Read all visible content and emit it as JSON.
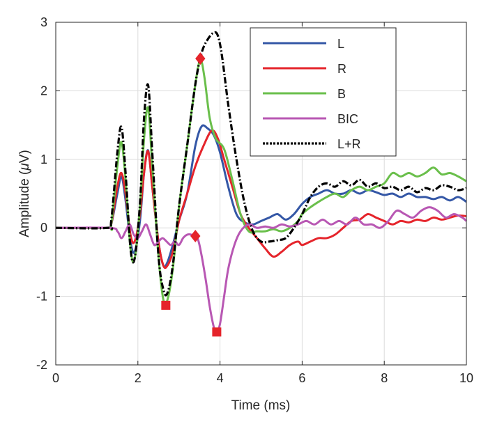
{
  "chart_data": {
    "type": "line",
    "title": "",
    "xlabel": "Time (ms)",
    "ylabel_prefix": "Amplitude (",
    "ylabel_mu": "μ",
    "ylabel_suffix": "V)",
    "xlim": [
      0,
      10
    ],
    "ylim": [
      -2,
      3
    ],
    "xticks": [
      0,
      2,
      4,
      6,
      8,
      10
    ],
    "yticks": [
      -2,
      -1,
      0,
      1,
      2,
      3
    ],
    "xtick_labels": [
      "0",
      "2",
      "4",
      "6",
      "8",
      "10"
    ],
    "ytick_labels": [
      "-2",
      "-1",
      "0",
      "1",
      "2",
      "3"
    ],
    "grid": true,
    "legend_position": "top-right",
    "series": [
      {
        "name": "L",
        "color": "#3457a6",
        "dash": "solid",
        "points": [
          [
            0,
            0
          ],
          [
            1.25,
            0
          ],
          [
            1.35,
            0.05
          ],
          [
            1.5,
            0.5
          ],
          [
            1.6,
            0.75
          ],
          [
            1.7,
            0.4
          ],
          [
            1.82,
            -0.2
          ],
          [
            1.92,
            -0.35
          ],
          [
            2.05,
            0.1
          ],
          [
            2.15,
            0.8
          ],
          [
            2.25,
            1.13
          ],
          [
            2.35,
            0.6
          ],
          [
            2.5,
            -0.2
          ],
          [
            2.62,
            -0.55
          ],
          [
            2.72,
            -0.5
          ],
          [
            2.85,
            -0.25
          ],
          [
            3.0,
            0.1
          ],
          [
            3.2,
            0.5
          ],
          [
            3.4,
            1.2
          ],
          [
            3.55,
            1.48
          ],
          [
            3.7,
            1.45
          ],
          [
            3.85,
            1.35
          ],
          [
            4.0,
            1.1
          ],
          [
            4.2,
            0.6
          ],
          [
            4.4,
            0.2
          ],
          [
            4.6,
            0.08
          ],
          [
            4.8,
            0.05
          ],
          [
            5.0,
            0.1
          ],
          [
            5.2,
            0.15
          ],
          [
            5.4,
            0.2
          ],
          [
            5.6,
            0.12
          ],
          [
            5.8,
            0.2
          ],
          [
            6.0,
            0.35
          ],
          [
            6.2,
            0.45
          ],
          [
            6.4,
            0.5
          ],
          [
            6.6,
            0.55
          ],
          [
            6.8,
            0.5
          ],
          [
            7.0,
            0.5
          ],
          [
            7.2,
            0.55
          ],
          [
            7.4,
            0.5
          ],
          [
            7.6,
            0.55
          ],
          [
            7.8,
            0.52
          ],
          [
            8.0,
            0.48
          ],
          [
            8.2,
            0.5
          ],
          [
            8.4,
            0.45
          ],
          [
            8.6,
            0.5
          ],
          [
            8.8,
            0.45
          ],
          [
            9.0,
            0.45
          ],
          [
            9.2,
            0.42
          ],
          [
            9.4,
            0.45
          ],
          [
            9.6,
            0.4
          ],
          [
            9.8,
            0.45
          ],
          [
            10.0,
            0.38
          ]
        ]
      },
      {
        "name": "R",
        "color": "#e5242b",
        "dash": "solid",
        "points": [
          [
            0,
            0
          ],
          [
            1.25,
            0
          ],
          [
            1.35,
            0.05
          ],
          [
            1.5,
            0.6
          ],
          [
            1.6,
            0.8
          ],
          [
            1.7,
            0.5
          ],
          [
            1.82,
            -0.1
          ],
          [
            1.92,
            -0.2
          ],
          [
            2.05,
            0.2
          ],
          [
            2.15,
            0.8
          ],
          [
            2.25,
            1.12
          ],
          [
            2.35,
            0.6
          ],
          [
            2.5,
            -0.2
          ],
          [
            2.62,
            -0.55
          ],
          [
            2.72,
            -0.55
          ],
          [
            2.85,
            -0.35
          ],
          [
            3.0,
            0.1
          ],
          [
            3.2,
            0.5
          ],
          [
            3.4,
            0.9
          ],
          [
            3.6,
            1.2
          ],
          [
            3.8,
            1.42
          ],
          [
            3.95,
            1.3
          ],
          [
            4.1,
            1.0
          ],
          [
            4.3,
            0.6
          ],
          [
            4.5,
            0.2
          ],
          [
            4.7,
            0.0
          ],
          [
            4.9,
            -0.15
          ],
          [
            5.1,
            -0.3
          ],
          [
            5.3,
            -0.42
          ],
          [
            5.5,
            -0.35
          ],
          [
            5.7,
            -0.25
          ],
          [
            5.9,
            -0.2
          ],
          [
            6.0,
            -0.25
          ],
          [
            6.2,
            -0.2
          ],
          [
            6.4,
            -0.15
          ],
          [
            6.6,
            -0.15
          ],
          [
            6.8,
            -0.1
          ],
          [
            7.0,
            0.0
          ],
          [
            7.2,
            0.1
          ],
          [
            7.4,
            0.12
          ],
          [
            7.6,
            0.2
          ],
          [
            7.8,
            0.15
          ],
          [
            8.0,
            0.1
          ],
          [
            8.2,
            0.05
          ],
          [
            8.4,
            0.1
          ],
          [
            8.6,
            0.08
          ],
          [
            8.8,
            0.12
          ],
          [
            9.0,
            0.1
          ],
          [
            9.2,
            0.15
          ],
          [
            9.4,
            0.12
          ],
          [
            9.6,
            0.15
          ],
          [
            9.8,
            0.18
          ],
          [
            10.0,
            0.17
          ]
        ]
      },
      {
        "name": "B",
        "color": "#6abf4b",
        "dash": "solid",
        "points": [
          [
            0,
            0
          ],
          [
            1.25,
            0
          ],
          [
            1.35,
            0.05
          ],
          [
            1.5,
            0.9
          ],
          [
            1.6,
            1.25
          ],
          [
            1.7,
            0.7
          ],
          [
            1.82,
            -0.3
          ],
          [
            1.92,
            -0.45
          ],
          [
            2.05,
            0.3
          ],
          [
            2.15,
            1.3
          ],
          [
            2.25,
            1.75
          ],
          [
            2.35,
            0.9
          ],
          [
            2.5,
            -0.4
          ],
          [
            2.62,
            -1.05
          ],
          [
            2.72,
            -1.05
          ],
          [
            2.85,
            -0.6
          ],
          [
            3.0,
            0.3
          ],
          [
            3.2,
            1.2
          ],
          [
            3.4,
            2.1
          ],
          [
            3.52,
            2.45
          ],
          [
            3.62,
            2.2
          ],
          [
            3.75,
            1.6
          ],
          [
            3.9,
            1.3
          ],
          [
            4.1,
            1.15
          ],
          [
            4.3,
            0.7
          ],
          [
            4.5,
            0.2
          ],
          [
            4.7,
            -0.05
          ],
          [
            4.9,
            -0.05
          ],
          [
            5.1,
            -0.05
          ],
          [
            5.3,
            -0.02
          ],
          [
            5.5,
            -0.05
          ],
          [
            5.7,
            0.0
          ],
          [
            5.9,
            0.1
          ],
          [
            6.0,
            0.2
          ],
          [
            6.2,
            0.3
          ],
          [
            6.4,
            0.38
          ],
          [
            6.6,
            0.45
          ],
          [
            6.8,
            0.5
          ],
          [
            7.0,
            0.45
          ],
          [
            7.2,
            0.55
          ],
          [
            7.4,
            0.6
          ],
          [
            7.6,
            0.55
          ],
          [
            7.8,
            0.6
          ],
          [
            8.0,
            0.65
          ],
          [
            8.2,
            0.8
          ],
          [
            8.4,
            0.75
          ],
          [
            8.6,
            0.8
          ],
          [
            8.8,
            0.75
          ],
          [
            9.0,
            0.8
          ],
          [
            9.2,
            0.88
          ],
          [
            9.4,
            0.78
          ],
          [
            9.6,
            0.8
          ],
          [
            9.8,
            0.75
          ],
          [
            10.0,
            0.68
          ]
        ]
      },
      {
        "name": "BIC",
        "color": "#b857b3",
        "dash": "solid",
        "points": [
          [
            0,
            0
          ],
          [
            1.3,
            0
          ],
          [
            1.5,
            -0.05
          ],
          [
            1.6,
            -0.15
          ],
          [
            1.7,
            -0.05
          ],
          [
            1.8,
            0.05
          ],
          [
            1.9,
            -0.1
          ],
          [
            2.0,
            -0.15
          ],
          [
            2.1,
            -0.05
          ],
          [
            2.2,
            0.05
          ],
          [
            2.3,
            -0.1
          ],
          [
            2.4,
            -0.25
          ],
          [
            2.5,
            -0.2
          ],
          [
            2.6,
            -0.15
          ],
          [
            2.7,
            -0.2
          ],
          [
            2.8,
            -0.25
          ],
          [
            2.9,
            -0.2
          ],
          [
            3.0,
            -0.25
          ],
          [
            3.1,
            -0.15
          ],
          [
            3.2,
            -0.1
          ],
          [
            3.3,
            -0.1
          ],
          [
            3.45,
            -0.15
          ],
          [
            3.55,
            -0.4
          ],
          [
            3.65,
            -0.75
          ],
          [
            3.75,
            -1.15
          ],
          [
            3.85,
            -1.45
          ],
          [
            3.92,
            -1.52
          ],
          [
            4.0,
            -1.4
          ],
          [
            4.1,
            -1.0
          ],
          [
            4.2,
            -0.6
          ],
          [
            4.35,
            -0.25
          ],
          [
            4.5,
            -0.05
          ],
          [
            4.7,
            0.05
          ],
          [
            4.9,
            0.0
          ],
          [
            5.1,
            0.02
          ],
          [
            5.3,
            0.0
          ],
          [
            5.5,
            0.05
          ],
          [
            5.7,
            0.02
          ],
          [
            5.9,
            0.05
          ],
          [
            6.1,
            0.1
          ],
          [
            6.3,
            0.05
          ],
          [
            6.5,
            0.12
          ],
          [
            6.7,
            0.05
          ],
          [
            6.9,
            0.1
          ],
          [
            7.1,
            0.05
          ],
          [
            7.3,
            0.15
          ],
          [
            7.5,
            0.05
          ],
          [
            7.7,
            0.05
          ],
          [
            7.9,
            0.0
          ],
          [
            8.1,
            0.1
          ],
          [
            8.3,
            0.25
          ],
          [
            8.5,
            0.2
          ],
          [
            8.7,
            0.15
          ],
          [
            8.9,
            0.25
          ],
          [
            9.1,
            0.3
          ],
          [
            9.3,
            0.25
          ],
          [
            9.5,
            0.15
          ],
          [
            9.7,
            0.2
          ],
          [
            9.9,
            0.15
          ],
          [
            10.0,
            0.1
          ]
        ]
      },
      {
        "name": "L+R",
        "color": "#000000",
        "dash": "dashdot",
        "points": [
          [
            0,
            0
          ],
          [
            1.25,
            0
          ],
          [
            1.35,
            0.1
          ],
          [
            1.5,
            1.1
          ],
          [
            1.6,
            1.47
          ],
          [
            1.7,
            0.8
          ],
          [
            1.82,
            -0.3
          ],
          [
            1.92,
            -0.45
          ],
          [
            2.05,
            0.35
          ],
          [
            2.15,
            1.6
          ],
          [
            2.25,
            2.08
          ],
          [
            2.35,
            1.1
          ],
          [
            2.5,
            -0.4
          ],
          [
            2.62,
            -0.9
          ],
          [
            2.72,
            -0.95
          ],
          [
            2.85,
            -0.55
          ],
          [
            3.0,
            0.3
          ],
          [
            3.2,
            1.2
          ],
          [
            3.4,
            2.1
          ],
          [
            3.55,
            2.55
          ],
          [
            3.7,
            2.75
          ],
          [
            3.85,
            2.85
          ],
          [
            3.95,
            2.8
          ],
          [
            4.05,
            2.5
          ],
          [
            4.2,
            1.8
          ],
          [
            4.4,
            1.0
          ],
          [
            4.6,
            0.35
          ],
          [
            4.8,
            -0.05
          ],
          [
            5.0,
            -0.2
          ],
          [
            5.2,
            -0.2
          ],
          [
            5.4,
            -0.18
          ],
          [
            5.6,
            -0.15
          ],
          [
            5.8,
            0.0
          ],
          [
            6.0,
            0.2
          ],
          [
            6.2,
            0.45
          ],
          [
            6.4,
            0.6
          ],
          [
            6.6,
            0.65
          ],
          [
            6.8,
            0.6
          ],
          [
            7.0,
            0.68
          ],
          [
            7.2,
            0.62
          ],
          [
            7.4,
            0.7
          ],
          [
            7.6,
            0.6
          ],
          [
            7.8,
            0.65
          ],
          [
            8.0,
            0.58
          ],
          [
            8.2,
            0.6
          ],
          [
            8.4,
            0.55
          ],
          [
            8.6,
            0.6
          ],
          [
            8.8,
            0.52
          ],
          [
            9.0,
            0.58
          ],
          [
            9.2,
            0.55
          ],
          [
            9.4,
            0.62
          ],
          [
            9.6,
            0.6
          ],
          [
            9.8,
            0.55
          ],
          [
            10.0,
            0.58
          ]
        ]
      }
    ],
    "markers": [
      {
        "name": "green-peak-diamond",
        "shape": "diamond",
        "x": 3.52,
        "y": 2.47,
        "color": "#e5242b"
      },
      {
        "name": "bic-diamond",
        "shape": "diamond",
        "x": 3.4,
        "y": -0.12,
        "color": "#e5242b"
      },
      {
        "name": "green-trough-square",
        "shape": "square",
        "x": 2.68,
        "y": -1.13,
        "color": "#e5242b"
      },
      {
        "name": "bic-trough-square",
        "shape": "square",
        "x": 3.92,
        "y": -1.52,
        "color": "#e5242b"
      }
    ]
  }
}
